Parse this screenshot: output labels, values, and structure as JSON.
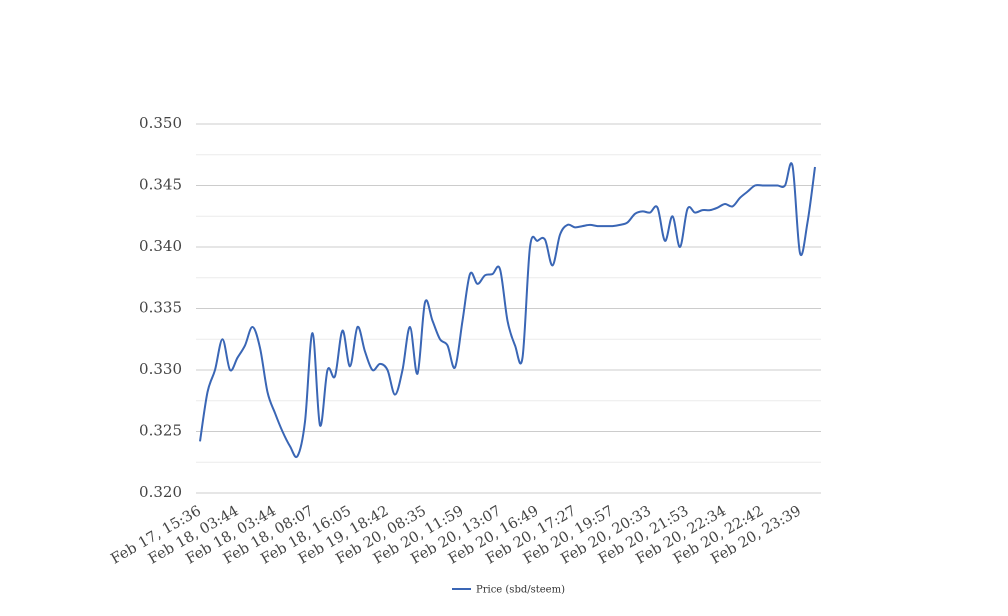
{
  "chart_data": {
    "type": "line",
    "categories": [
      "Feb 17, 15:36",
      null,
      null,
      null,
      null,
      "Feb 18, 03:44",
      null,
      null,
      null,
      null,
      "Feb 18, 03:44",
      null,
      null,
      null,
      null,
      "Feb 18, 08:07",
      null,
      null,
      null,
      null,
      "Feb 18, 16:05",
      null,
      null,
      null,
      null,
      "Feb 19, 18:42",
      null,
      null,
      null,
      null,
      "Feb 20, 08:35",
      null,
      null,
      null,
      null,
      "Feb 20, 11:59",
      null,
      null,
      null,
      null,
      "Feb 20, 13:07",
      null,
      null,
      null,
      null,
      "Feb 20, 16:49",
      null,
      null,
      null,
      null,
      "Feb 20, 17:27",
      null,
      null,
      null,
      null,
      "Feb 20, 19:57",
      null,
      null,
      null,
      null,
      "Feb 20, 20:33",
      null,
      null,
      null,
      null,
      "Feb 20, 21:53",
      null,
      null,
      null,
      null,
      "Feb 20, 22:34",
      null,
      null,
      null,
      null,
      "Feb 20, 22:42",
      null,
      null,
      null,
      null,
      "Feb 20, 23:39",
      null,
      null
    ],
    "series": [
      {
        "name": "Price (sbd/steem)",
        "color": "#3a66b5",
        "values": [
          0.3242,
          0.3282,
          0.33,
          0.3325,
          0.33,
          0.331,
          0.332,
          0.3335,
          0.3318,
          0.3282,
          0.3265,
          0.325,
          0.3238,
          0.323,
          0.3258,
          0.333,
          0.3255,
          0.33,
          0.3295,
          0.3332,
          0.3303,
          0.3335,
          0.3315,
          0.33,
          0.3305,
          0.33,
          0.328,
          0.33,
          0.3335,
          0.3297,
          0.3355,
          0.334,
          0.3325,
          0.332,
          0.3302,
          0.334,
          0.3378,
          0.337,
          0.3377,
          0.3378,
          0.3382,
          0.334,
          0.332,
          0.331,
          0.34,
          0.3405,
          0.3406,
          0.3385,
          0.341,
          0.3418,
          0.3416,
          0.3417,
          0.3418,
          0.3417,
          0.3417,
          0.3417,
          0.3418,
          0.342,
          0.3427,
          0.3429,
          0.3428,
          0.3432,
          0.3405,
          0.3425,
          0.34,
          0.3431,
          0.3428,
          0.343,
          0.343,
          0.3432,
          0.3435,
          0.3433,
          0.344,
          0.3445,
          0.345,
          0.345,
          0.345,
          0.345,
          0.345,
          0.3466,
          0.3395,
          0.342,
          0.3465
        ]
      }
    ],
    "ylim": [
      0.32,
      0.35
    ],
    "yticks": [
      {
        "value": 0.32,
        "label": "0.320"
      },
      0.325,
      {
        "value": 0.33,
        "label": "0.330"
      },
      0.335,
      {
        "value": 0.34,
        "label": "0.340"
      },
      0.345,
      {
        "value": 0.35,
        "label": "0.350"
      }
    ],
    "minor_yticks": [
      0.3225,
      0.3275,
      0.3325,
      0.3375,
      0.3425,
      0.3475
    ],
    "grid": true,
    "legend": "bottom"
  }
}
